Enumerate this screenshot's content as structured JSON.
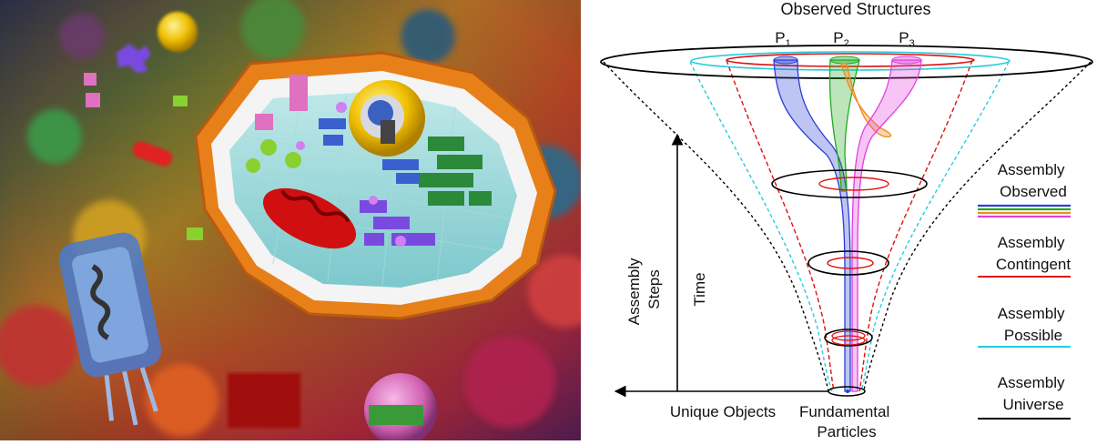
{
  "diagram": {
    "title": "Observed Structures",
    "paths": [
      {
        "label": "P",
        "sub": "1"
      },
      {
        "label": "P",
        "sub": "2"
      },
      {
        "label": "P",
        "sub": "3"
      }
    ],
    "axes": {
      "vertical_label_line1": "Assembly",
      "vertical_label_line2": "Steps",
      "time_label": "Time",
      "horizontal_label": "Unique Objects"
    },
    "base_label_line1": "Fundamental",
    "base_label_line2": "Particles",
    "legend": [
      {
        "line1": "Assembly",
        "line2": "Observed",
        "colors": [
          "#2b3fd6",
          "#22aa22",
          "#f08a1c",
          "#e040e0"
        ]
      },
      {
        "line1": "Assembly",
        "line2": "Contingent",
        "colors": [
          "#e01010"
        ]
      },
      {
        "line1": "Assembly",
        "line2": "Possible",
        "colors": [
          "#22ccdd"
        ]
      },
      {
        "line1": "Assembly",
        "line2": "Universe",
        "colors": [
          "#000000"
        ]
      }
    ]
  },
  "colors": {
    "observed_blue": "#2b3fd6",
    "observed_green": "#22aa22",
    "observed_orange": "#f08a1c",
    "observed_magenta": "#e040e0",
    "contingent": "#e01010",
    "possible": "#22ccdd",
    "universe": "#000000"
  }
}
